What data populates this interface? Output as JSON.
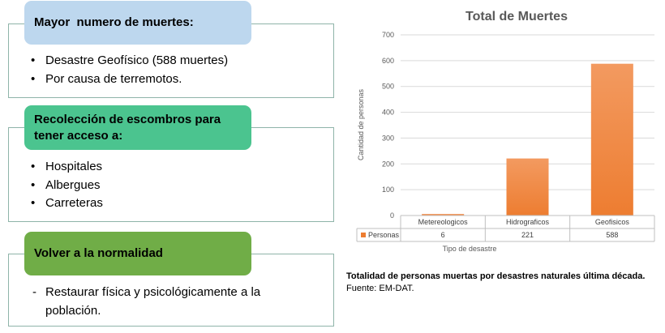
{
  "sections": [
    {
      "heading": "Mayor  numero de muertes:",
      "items": [
        "Desastre Geofísico (588 muertes)",
        "Por causa de terremotos."
      ]
    },
    {
      "heading_line1": "Recolección de escombros para",
      "heading_line2": "tener acceso a:",
      "items": [
        "Hospitales",
        "Albergues",
        "Carreteras"
      ]
    },
    {
      "heading": "Volver a la normalidad",
      "items": [
        "Restaurar física y psicológicamente a la población."
      ]
    }
  ],
  "colors": {
    "pill_blue": "#bdd7ee",
    "pill_green": "#4bc48f",
    "pill_olive": "#70ad47",
    "bar": "#ed7d31"
  },
  "chart_data": {
    "type": "bar",
    "title": "Total de Muertes",
    "xlabel": "Tipo de desastre",
    "ylabel": "Cantidad de personas",
    "categories": [
      "Metereologicos",
      "Hidrograficos",
      "Geofisicos"
    ],
    "series": [
      {
        "name": "Personas",
        "values": [
          6,
          221,
          588
        ]
      }
    ],
    "ylim": [
      0,
      700
    ],
    "yticks": [
      0,
      100,
      200,
      300,
      400,
      500,
      600,
      700
    ],
    "grid": true,
    "data_table": true
  },
  "caption": {
    "line1": "Totalidad de personas muertas por desastres naturales última década.",
    "line2": "Fuente: EM-DAT."
  }
}
